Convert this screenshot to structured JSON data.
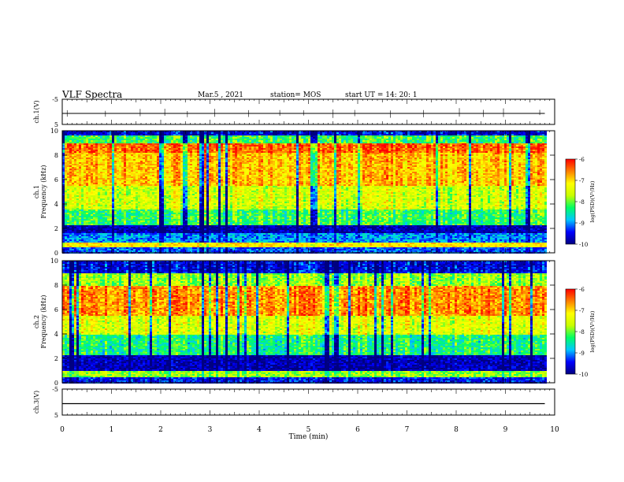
{
  "header": {
    "title": "VLF Spectra",
    "date": "Mar.5  , 2021",
    "station": "station= MOS",
    "start_ut": "start  UT =   14: 20: 1"
  },
  "chart_data": [
    {
      "type": "line",
      "panel": "ch1-waveform",
      "ylabel": "ch.1(V)",
      "x_range": [
        0,
        10
      ],
      "ylim": [
        -5,
        5
      ],
      "y_ticks": [
        "5",
        "-5"
      ],
      "series": [
        {
          "x": [
            0,
            9.8
          ],
          "y": [
            0,
            0
          ]
        }
      ]
    },
    {
      "type": "heatmap",
      "panel": "ch1-spectrogram",
      "ylabel": "ch.1\nFrequency (kHz)",
      "x_range": [
        0,
        10
      ],
      "ylim": [
        0,
        10
      ],
      "y_ticks": [
        "0",
        "2",
        "4",
        "6",
        "8",
        "10"
      ],
      "colorbar": {
        "label": "log(PSD)(V²/Hz)",
        "range": [
          -10,
          -6
        ],
        "ticks": [
          "-6",
          "-7",
          "-8",
          "-9",
          "-10"
        ],
        "colors": [
          "#000080",
          "#0000ff",
          "#00c8ff",
          "#00ff64",
          "#c8ff00",
          "#ffff00",
          "#ff8000",
          "#ff0000"
        ]
      },
      "bands": [
        {
          "f0": 0.0,
          "f1": 0.4,
          "level": 0.2
        },
        {
          "f0": 0.4,
          "f1": 0.8,
          "level": 0.72
        },
        {
          "f0": 0.8,
          "f1": 1.6,
          "level": 0.25
        },
        {
          "f0": 1.6,
          "f1": 2.2,
          "level": 0.05
        },
        {
          "f0": 2.2,
          "f1": 3.5,
          "level": 0.45
        },
        {
          "f0": 3.5,
          "f1": 5.5,
          "level": 0.62
        },
        {
          "f0": 5.5,
          "f1": 8.2,
          "level": 0.78
        },
        {
          "f0": 8.2,
          "f1": 9.0,
          "level": 0.9
        },
        {
          "f0": 9.0,
          "f1": 9.6,
          "level": 0.45
        },
        {
          "f0": 9.6,
          "f1": 10.0,
          "level": 0.1
        }
      ]
    },
    {
      "type": "heatmap",
      "panel": "ch2-spectrogram",
      "ylabel": "ch.2\nFrequency (kHz)",
      "x_range": [
        0,
        10
      ],
      "ylim": [
        0,
        10
      ],
      "y_ticks": [
        "0",
        "2",
        "4",
        "6",
        "8",
        "10"
      ],
      "colorbar": {
        "label": "log(PSD)(V²/Hz)",
        "range": [
          -10,
          -6
        ],
        "ticks": [
          "-6",
          "-7",
          "-8",
          "-9",
          "-10"
        ],
        "colors": [
          "#000080",
          "#0000ff",
          "#00c8ff",
          "#00ff64",
          "#c8ff00",
          "#ffff00",
          "#ff8000",
          "#ff0000"
        ]
      },
      "bands": [
        {
          "f0": 0.0,
          "f1": 0.5,
          "level": 0.15
        },
        {
          "f0": 0.5,
          "f1": 1.0,
          "level": 0.55
        },
        {
          "f0": 1.0,
          "f1": 2.2,
          "level": 0.06
        },
        {
          "f0": 2.2,
          "f1": 4.0,
          "level": 0.42
        },
        {
          "f0": 4.0,
          "f1": 5.5,
          "level": 0.65
        },
        {
          "f0": 5.5,
          "f1": 8.0,
          "level": 0.85
        },
        {
          "f0": 8.0,
          "f1": 9.0,
          "level": 0.55
        },
        {
          "f0": 9.0,
          "f1": 10.0,
          "level": 0.12
        }
      ]
    },
    {
      "type": "line",
      "panel": "ch3-waveform",
      "ylabel": "ch.3(V)",
      "x_range": [
        0,
        10
      ],
      "ylim": [
        -5,
        5
      ],
      "y_ticks": [
        "5",
        "-5"
      ],
      "series": [
        {
          "x": [
            0,
            9.8
          ],
          "y": [
            0,
            0
          ]
        }
      ]
    }
  ],
  "x_axis": {
    "label": "Time  (min)",
    "ticks": [
      "0",
      "1",
      "2",
      "3",
      "4",
      "5",
      "6",
      "7",
      "8",
      "9",
      "10"
    ]
  }
}
